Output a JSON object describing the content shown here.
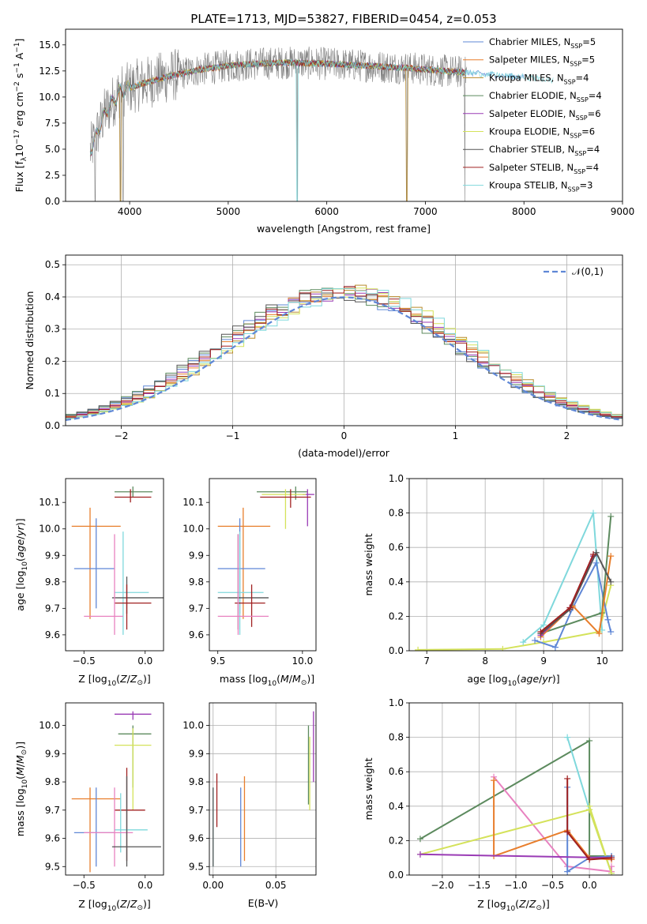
{
  "figure_title": "PLATE=1713, MJD=53827, FIBERID=0454, z=0.053",
  "models": [
    {
      "label": "Chabrier MILES, N_SSP=5",
      "color": "#5f87d6"
    },
    {
      "label": "Salpeter MILES, N_SSP=5",
      "color": "#e87e2c"
    },
    {
      "label": "Kroupa MILES, N_SSP=4",
      "color": "#b88a2a"
    },
    {
      "label": "Chabrier ELODIE, N_SSP=4",
      "color": "#5c8a5e"
    },
    {
      "label": "Salpeter ELODIE, N_SSP=6",
      "color": "#9a3bb5"
    },
    {
      "label": "Kroupa ELODIE, N_SSP=6",
      "color": "#d4e25a"
    },
    {
      "label": "Chabrier STELIB, N_SSP=4",
      "color": "#555555"
    },
    {
      "label": "Salpeter STELIB, N_SSP=4",
      "color": "#a02020"
    },
    {
      "label": "Kroupa STELIB, N_SSP=3",
      "color": "#7fd8dc"
    }
  ],
  "extra_colors": {
    "pink": "#e882c0",
    "grey": "#808080"
  },
  "chart_data": [
    {
      "id": "spectrum",
      "type": "line",
      "xlabel": "wavelength [Angstrom, rest frame]",
      "ylabel": "Flux [f_λ 10^-17 erg cm^-2 s^-1 A^-1]",
      "xlim": [
        3350,
        9000
      ],
      "ylim": [
        0,
        16.5
      ],
      "xticks": [
        4000,
        5000,
        6000,
        7000,
        8000,
        9000
      ],
      "yticks": [
        0.0,
        2.5,
        5.0,
        7.5,
        10.0,
        12.5,
        15.0
      ],
      "ytick_labels": [
        "0.0",
        "2.5",
        "5.0",
        "7.5",
        "10.0",
        "12.5",
        "15.0"
      ],
      "grid": false,
      "legend": "right",
      "continuum": {
        "x": [
          3600,
          3750,
          3900,
          4100,
          4400,
          4700,
          5000,
          5300,
          5600,
          6000,
          6400,
          6800,
          7200,
          7600,
          8000,
          8300
        ],
        "y": [
          4.8,
          8.5,
          10.5,
          11.2,
          12.0,
          12.6,
          13.0,
          13.2,
          13.3,
          13.2,
          13.0,
          12.8,
          12.5,
          12.2,
          11.9,
          11.6
        ]
      },
      "dropouts": [
        3650,
        3905,
        3935,
        5700,
        6810,
        7400
      ]
    },
    {
      "id": "residuals",
      "type": "step",
      "xlabel": "(data-model)/error",
      "ylabel": "Normed distribution",
      "xlim": [
        -2.5,
        2.5
      ],
      "ylim": [
        0,
        0.53
      ],
      "xticks": [
        -2,
        -1,
        0,
        1,
        2
      ],
      "xtick_labels": [
        "−2",
        "−1",
        "0",
        "1",
        "2"
      ],
      "yticks": [
        0.0,
        0.1,
        0.2,
        0.3,
        0.4,
        0.5
      ],
      "ytick_labels": [
        "0.0",
        "0.1",
        "0.2",
        "0.3",
        "0.4",
        "0.5"
      ],
      "grid": true,
      "legend": "top-right",
      "reference": {
        "label": "𝒩(0,1)",
        "mu": 0,
        "sigma": 1
      }
    },
    {
      "id": "age_vs_Z",
      "type": "errorbar",
      "xlabel": "Z [log10(Z/Z⊙)]",
      "ylabel": "age  [log10(age/yr)]",
      "xlim": [
        -0.65,
        0.15
      ],
      "ylim": [
        9.54,
        10.19
      ],
      "xticks": [
        -0.5,
        0.0
      ],
      "xtick_labels": [
        "−0.5",
        "0.0"
      ],
      "yticks": [
        9.6,
        9.7,
        9.8,
        9.9,
        10.0,
        10.1
      ],
      "ytick_labels": [
        "9.6",
        "9.7",
        "9.8",
        "9.9",
        "10.0",
        "10.1"
      ],
      "grid": false,
      "points": [
        {
          "c": "#5c8a5e",
          "x": -0.1,
          "xe": [
            -0.25,
            0.06
          ],
          "y": 10.14,
          "ye": [
            10.12,
            10.16
          ]
        },
        {
          "c": "#a02020",
          "x": -0.12,
          "xe": [
            -0.25,
            0.05
          ],
          "y": 10.12,
          "ye": [
            10.1,
            10.15
          ]
        },
        {
          "c": "#e87e2c",
          "x": -0.45,
          "xe": [
            -0.6,
            -0.2
          ],
          "y": 10.01,
          "ye": [
            9.66,
            10.08
          ]
        },
        {
          "c": "#5f87d6",
          "x": -0.4,
          "xe": [
            -0.58,
            -0.25
          ],
          "y": 9.85,
          "ye": [
            9.7,
            10.04
          ]
        },
        {
          "c": "#7fd8dc",
          "x": -0.18,
          "xe": [
            -0.25,
            0.03
          ],
          "y": 9.76,
          "ye": [
            9.6,
            9.99
          ]
        },
        {
          "c": "#555555",
          "x": -0.15,
          "xe": [
            -0.27,
            0.15
          ],
          "y": 9.74,
          "ye": [
            9.68,
            9.82
          ]
        },
        {
          "c": "#a02020",
          "x": -0.15,
          "xe": [
            -0.25,
            0.05
          ],
          "y": 9.72,
          "ye": [
            9.62,
            9.79
          ]
        },
        {
          "c": "#e882c0",
          "x": -0.25,
          "xe": [
            -0.5,
            -0.18
          ],
          "y": 9.67,
          "ye": [
            9.6,
            9.98
          ]
        }
      ]
    },
    {
      "id": "age_vs_mass",
      "type": "errorbar",
      "xlabel": "mass [log10(M/M⊙)]",
      "ylabel": "",
      "xlim": [
        9.45,
        10.08
      ],
      "ylim": [
        9.54,
        10.19
      ],
      "xticks": [
        9.5,
        10.0
      ],
      "xtick_labels": [
        "9.5",
        "10.0"
      ],
      "yticks": [
        9.6,
        9.7,
        9.8,
        9.9,
        10.0,
        10.1
      ],
      "ytick_labels": [
        "9.6",
        "9.7",
        "9.8",
        "9.9",
        "10.0",
        "10.1"
      ],
      "grid": false,
      "points": [
        {
          "c": "#5c8a5e",
          "x": 9.96,
          "xe": [
            9.73,
            10.03
          ],
          "y": 10.14,
          "ye": [
            10.11,
            10.16
          ]
        },
        {
          "c": "#9a3bb5",
          "x": 10.03,
          "xe": [
            10.0,
            10.07
          ],
          "y": 10.13,
          "ye": [
            10.01,
            10.15
          ]
        },
        {
          "c": "#d4e25a",
          "x": 9.9,
          "xe": [
            9.76,
            10.02
          ],
          "y": 10.13,
          "ye": [
            10.0,
            10.15
          ]
        },
        {
          "c": "#a02020",
          "x": 9.93,
          "xe": [
            9.75,
            10.05
          ],
          "y": 10.12,
          "ye": [
            10.08,
            10.15
          ]
        },
        {
          "c": "#e87e2c",
          "x": 9.65,
          "xe": [
            9.5,
            9.81
          ],
          "y": 10.01,
          "ye": [
            9.66,
            10.08
          ]
        },
        {
          "c": "#5f87d6",
          "x": 9.63,
          "xe": [
            9.5,
            9.78
          ],
          "y": 9.85,
          "ye": [
            9.68,
            10.04
          ]
        },
        {
          "c": "#7fd8dc",
          "x": 9.63,
          "xe": [
            9.5,
            9.77
          ],
          "y": 9.76,
          "ye": [
            9.6,
            9.99
          ]
        },
        {
          "c": "#555555",
          "x": 9.62,
          "xe": [
            9.5,
            9.8
          ],
          "y": 9.74,
          "ye": [
            9.62,
            9.98
          ]
        },
        {
          "c": "#a02020",
          "x": 9.7,
          "xe": [
            9.6,
            9.78
          ],
          "y": 9.72,
          "ye": [
            9.63,
            9.79
          ]
        },
        {
          "c": "#e882c0",
          "x": 9.62,
          "xe": [
            9.5,
            9.8
          ],
          "y": 9.67,
          "ye": [
            9.6,
            9.98
          ]
        }
      ]
    },
    {
      "id": "weight_vs_age",
      "type": "line",
      "xlabel": "age  [log10(age/yr)]",
      "ylabel": "mass weight",
      "xlim": [
        6.7,
        10.35
      ],
      "ylim": [
        0,
        1.0
      ],
      "xticks": [
        7,
        8,
        9,
        10
      ],
      "xtick_labels": [
        "7",
        "8",
        "9",
        "10"
      ],
      "yticks": [
        0.0,
        0.2,
        0.4,
        0.6,
        0.8,
        1.0
      ],
      "ytick_labels": [
        "0.0",
        "0.2",
        "0.4",
        "0.6",
        "0.8",
        "1.0"
      ],
      "grid": true,
      "series": [
        {
          "c": "#d4e25a",
          "x": [
            6.85,
            8.3,
            9.0,
            9.95,
            10.15
          ],
          "y": [
            0.005,
            0.01,
            0.05,
            0.11,
            0.38
          ]
        },
        {
          "c": "#7fd8dc",
          "x": [
            8.65,
            9.0,
            9.85,
            10.0
          ],
          "y": [
            0.05,
            0.15,
            0.8,
            0.12
          ]
        },
        {
          "c": "#5f87d6",
          "x": [
            8.85,
            9.2,
            9.5,
            9.9,
            10.1,
            10.15
          ],
          "y": [
            0.06,
            0.02,
            0.25,
            0.51,
            0.18,
            0.11
          ]
        },
        {
          "c": "#5c8a5e",
          "x": [
            8.95,
            10.0,
            10.15
          ],
          "y": [
            0.1,
            0.22,
            0.78
          ]
        },
        {
          "c": "#e87e2c",
          "x": [
            8.95,
            9.5,
            9.95,
            10.15
          ],
          "y": [
            0.08,
            0.26,
            0.1,
            0.55
          ]
        },
        {
          "c": "#9a3bb5",
          "x": [
            8.95,
            9.45,
            9.85
          ],
          "y": [
            0.09,
            0.25,
            0.55
          ]
        },
        {
          "c": "#555555",
          "x": [
            8.95,
            9.45,
            9.9,
            10.15
          ],
          "y": [
            0.1,
            0.24,
            0.57,
            0.4
          ]
        },
        {
          "c": "#a02020",
          "x": [
            8.95,
            9.45,
            9.85
          ],
          "y": [
            0.11,
            0.25,
            0.56
          ]
        }
      ]
    },
    {
      "id": "mass_vs_Z",
      "type": "errorbar",
      "xlabel": "Z [log10(Z/Z⊙)]",
      "ylabel": "mass [log10(M/M⊙)]",
      "xlim": [
        -0.65,
        0.15
      ],
      "ylim": [
        9.47,
        10.08
      ],
      "xticks": [
        -0.5,
        0.0
      ],
      "xtick_labels": [
        "−0.5",
        "0.0"
      ],
      "yticks": [
        9.5,
        9.6,
        9.7,
        9.8,
        9.9,
        10.0
      ],
      "ytick_labels": [
        "9.5",
        "9.6",
        "9.7",
        "9.8",
        "9.9",
        "10.0"
      ],
      "grid": false,
      "points": [
        {
          "c": "#9a3bb5",
          "x": -0.1,
          "xe": [
            -0.25,
            0.05
          ],
          "y": 10.04,
          "ye": [
            10.02,
            10.05
          ]
        },
        {
          "c": "#5c8a5e",
          "x": -0.1,
          "xe": [
            -0.22,
            0.05
          ],
          "y": 9.97,
          "ye": [
            9.78,
            10.0
          ]
        },
        {
          "c": "#d4e25a",
          "x": -0.1,
          "xe": [
            -0.25,
            0.05
          ],
          "y": 9.93,
          "ye": [
            9.7,
            9.99
          ]
        },
        {
          "c": "#e87e2c",
          "x": -0.45,
          "xe": [
            -0.6,
            -0.2
          ],
          "y": 9.74,
          "ye": [
            9.48,
            9.78
          ]
        },
        {
          "c": "#a02020",
          "x": -0.15,
          "xe": [
            -0.25,
            0.0
          ],
          "y": 9.7,
          "ye": [
            9.52,
            9.85
          ]
        },
        {
          "c": "#7fd8dc",
          "x": -0.2,
          "xe": [
            -0.25,
            0.02
          ],
          "y": 9.63,
          "ye": [
            9.55,
            9.76
          ]
        },
        {
          "c": "#5f87d6",
          "x": -0.4,
          "xe": [
            -0.58,
            -0.25
          ],
          "y": 9.62,
          "ye": [
            9.5,
            9.78
          ]
        },
        {
          "c": "#e882c0",
          "x": -0.25,
          "xe": [
            -0.5,
            -0.1
          ],
          "y": 9.62,
          "ye": [
            9.5,
            9.78
          ]
        },
        {
          "c": "#555555",
          "x": -0.15,
          "xe": [
            -0.27,
            0.13
          ],
          "y": 9.57,
          "ye": [
            9.5,
            9.82
          ]
        }
      ]
    },
    {
      "id": "mass_vs_EBV",
      "type": "errorbar",
      "xlabel": "E(B-V)",
      "ylabel": "",
      "xlim": [
        -0.003,
        0.082
      ],
      "ylim": [
        9.47,
        10.08
      ],
      "xticks": [
        0.0,
        0.05
      ],
      "xtick_labels": [
        "0.00",
        "0.05"
      ],
      "yticks": [
        9.5,
        9.6,
        9.7,
        9.8,
        9.9,
        10.0
      ],
      "ytick_labels": [
        "9.5",
        "9.6",
        "9.7",
        "9.8",
        "9.9",
        "10.0"
      ],
      "grid": true,
      "points": [
        {
          "c": "#7fd8dc",
          "x": 0.0,
          "y": 9.63,
          "ye": [
            9.5,
            9.78
          ]
        },
        {
          "c": "#555555",
          "x": 0.0,
          "y": 9.6,
          "ye": [
            9.5,
            9.78
          ]
        },
        {
          "c": "#a02020",
          "x": 0.003,
          "y": 9.72,
          "ye": [
            9.64,
            9.83
          ]
        },
        {
          "c": "#5f87d6",
          "x": 0.022,
          "y": 9.65,
          "ye": [
            9.5,
            9.78
          ]
        },
        {
          "c": "#e87e2c",
          "x": 0.025,
          "y": 9.7,
          "ye": [
            9.52,
            9.82
          ]
        },
        {
          "c": "#5c8a5e",
          "x": 0.076,
          "y": 9.97,
          "ye": [
            9.72,
            10.0
          ]
        },
        {
          "c": "#d4e25a",
          "x": 0.077,
          "y": 9.93,
          "ye": [
            9.7,
            9.96
          ]
        },
        {
          "c": "#9a3bb5",
          "x": 0.08,
          "y": 10.04,
          "ye": [
            9.8,
            10.05
          ]
        }
      ]
    },
    {
      "id": "weight_vs_Z",
      "type": "line",
      "xlabel": "Z [log10(Z/Z⊙)]",
      "ylabel": "mass weight",
      "xlim": [
        -2.45,
        0.45
      ],
      "ylim": [
        0,
        1.0
      ],
      "xticks": [
        -2.0,
        -1.5,
        -1.0,
        -0.5,
        0.0
      ],
      "xtick_labels": [
        "−2.0",
        "−1.5",
        "−1.0",
        "−0.5",
        "0.0"
      ],
      "yticks": [
        0.0,
        0.2,
        0.4,
        0.6,
        0.8,
        1.0
      ],
      "ytick_labels": [
        "0.0",
        "0.2",
        "0.4",
        "0.6",
        "0.8",
        "1.0"
      ],
      "grid": true,
      "series": [
        {
          "c": "#5c8a5e",
          "x": [
            -2.3,
            0.0,
            0.0,
            0.3
          ],
          "y": [
            0.21,
            0.78,
            0.11,
            0.11
          ]
        },
        {
          "c": "#7fd8dc",
          "x": [
            -0.3,
            0.0,
            0.3
          ],
          "y": [
            0.8,
            0.38,
            0.01
          ]
        },
        {
          "c": "#e882c0",
          "x": [
            -1.3,
            -0.3,
            0.3,
            0.3
          ],
          "y": [
            0.57,
            0.05,
            0.02,
            0.05
          ]
        },
        {
          "c": "#d4e25a",
          "x": [
            -2.3,
            0.0,
            0.3,
            0.0
          ],
          "y": [
            0.12,
            0.38,
            0.01,
            0.4
          ]
        },
        {
          "c": "#5f87d6",
          "x": [
            -0.3,
            -0.3,
            0.0,
            0.3
          ],
          "y": [
            0.51,
            0.02,
            0.1,
            0.11
          ]
        },
        {
          "c": "#e87e2c",
          "x": [
            -1.3,
            -1.3,
            -0.3,
            0.0,
            0.3
          ],
          "y": [
            0.55,
            0.11,
            0.26,
            0.1,
            0.09
          ]
        },
        {
          "c": "#9a3bb5",
          "x": [
            -2.3,
            0.3
          ],
          "y": [
            0.12,
            0.1
          ]
        },
        {
          "c": "#a02020",
          "x": [
            -0.3,
            -0.3,
            0.0,
            0.3
          ],
          "y": [
            0.56,
            0.25,
            0.09,
            0.1
          ]
        }
      ]
    }
  ]
}
